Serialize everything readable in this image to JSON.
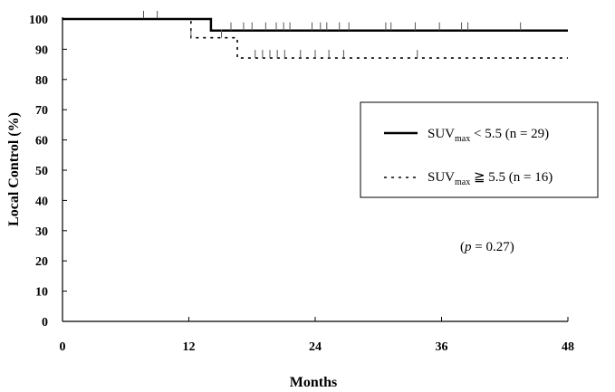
{
  "chart_data": {
    "type": "line",
    "subtype": "kaplan-meier",
    "title": "",
    "xlabel": "Months",
    "ylabel": "Local Control  (%)",
    "xlim": [
      0,
      48
    ],
    "ylim": [
      0,
      100
    ],
    "xticks": [
      0,
      12,
      24,
      36,
      48
    ],
    "yticks": [
      0,
      10,
      20,
      30,
      40,
      50,
      60,
      70,
      80,
      90,
      100
    ],
    "grid": false,
    "legend_position": "right",
    "series": [
      {
        "name": "SUVmax < 5.5  (n = 29)",
        "legend": {
          "main": "SUV",
          "sub": "max",
          "rest": " < 5.5  (n = 29)"
        },
        "style": "solid",
        "steps": [
          [
            0,
            100
          ],
          [
            14.1,
            100
          ],
          [
            14.1,
            96.2
          ],
          [
            48,
            96.2
          ]
        ],
        "censored": [
          7.7,
          9.0,
          16.0,
          17.2,
          18.0,
          19.3,
          20.3,
          21.0,
          21.6,
          23.7,
          24.5,
          25.1,
          26.3,
          27.2,
          30.7,
          31.2,
          33.5,
          35.8,
          37.9,
          38.5,
          43.5
        ]
      },
      {
        "name": "SUVmax ≧ 5.5  (n = 16)",
        "legend": {
          "main": "SUV",
          "sub": "max",
          "rest": " ≧ 5.5  (n = 16)"
        },
        "style": "dotted",
        "steps": [
          [
            0,
            100
          ],
          [
            12.2,
            100
          ],
          [
            12.2,
            93.8
          ],
          [
            16.6,
            93.8
          ],
          [
            16.6,
            87.1
          ],
          [
            48,
            87.1
          ]
        ],
        "censored": [
          12.2,
          15.1,
          18.3,
          19.0,
          19.7,
          20.4,
          21.1,
          22.6,
          24.0,
          25.3,
          26.7,
          33.7
        ]
      }
    ],
    "annotations": [
      {
        "text_italic": "p",
        "text": " = 0.27)",
        "prefix": "("
      }
    ]
  }
}
